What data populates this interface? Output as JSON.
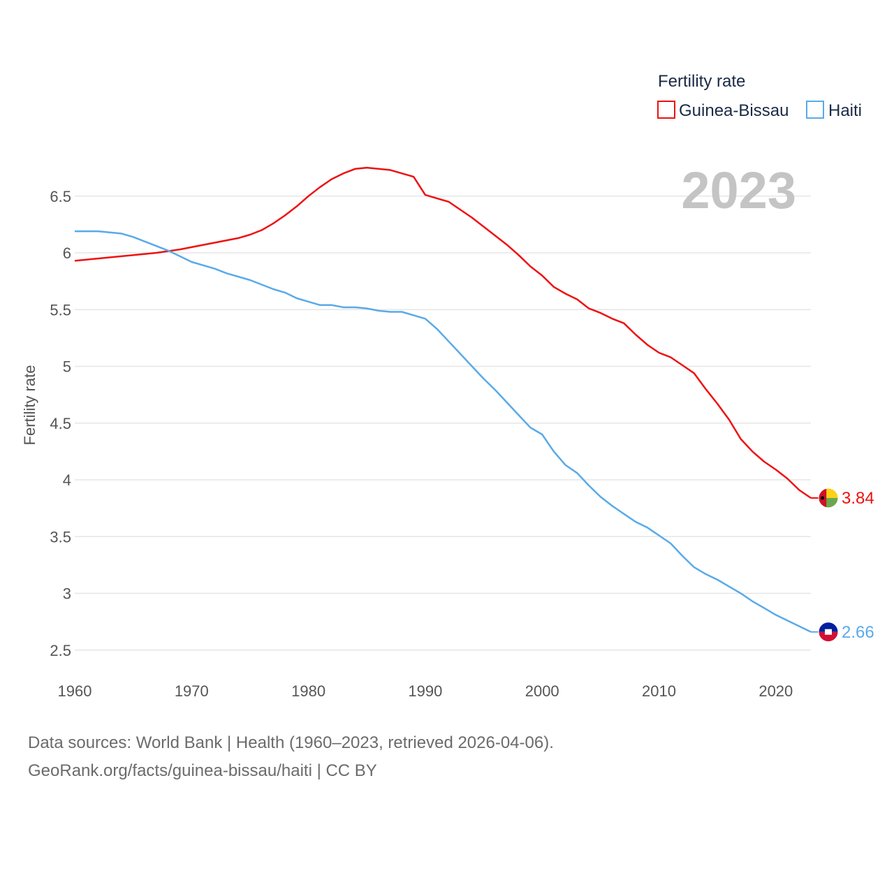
{
  "chart_data": {
    "type": "line",
    "ylabel": "Fertility rate",
    "xlabel": "",
    "xlim": [
      1960,
      2023
    ],
    "ylim": [
      2.4,
      6.8
    ],
    "xticks": [
      1960,
      1970,
      1980,
      1990,
      2000,
      2010,
      2020
    ],
    "yticks": [
      2.5,
      3,
      3.5,
      4,
      4.5,
      5,
      5.5,
      6,
      6.5
    ],
    "ytick_labels": [
      "2.5",
      "3",
      "3.5",
      "4",
      "4.5",
      "5",
      "5.5",
      "6",
      "6.5"
    ],
    "current_year": "2023",
    "legend": {
      "title": "Fertility rate",
      "position": "top-right",
      "entries": [
        "Guinea-Bissau",
        "Haiti"
      ]
    },
    "series": [
      {
        "name": "Guinea-Bissau",
        "color": "#ee1111",
        "end_label": "3.84",
        "flag_colors": [
          "#ce1126",
          "#fcd116",
          "#6aa84f",
          "#000000"
        ],
        "points": [
          [
            1960,
            5.93
          ],
          [
            1962,
            5.95
          ],
          [
            1964,
            5.97
          ],
          [
            1966,
            5.99
          ],
          [
            1967,
            6.0
          ],
          [
            1969,
            6.03
          ],
          [
            1971,
            6.07
          ],
          [
            1973,
            6.11
          ],
          [
            1974,
            6.13
          ],
          [
            1975,
            6.16
          ],
          [
            1976,
            6.2
          ],
          [
            1977,
            6.26
          ],
          [
            1978,
            6.33
          ],
          [
            1979,
            6.41
          ],
          [
            1980,
            6.5
          ],
          [
            1981,
            6.58
          ],
          [
            1982,
            6.65
          ],
          [
            1983,
            6.7
          ],
          [
            1984,
            6.74
          ],
          [
            1985,
            6.75
          ],
          [
            1987,
            6.73
          ],
          [
            1989,
            6.67
          ],
          [
            1990,
            6.51
          ],
          [
            1992,
            6.45
          ],
          [
            1994,
            6.31
          ],
          [
            1996,
            6.15
          ],
          [
            1997,
            6.07
          ],
          [
            1998,
            5.98
          ],
          [
            1999,
            5.88
          ],
          [
            2000,
            5.8
          ],
          [
            2001,
            5.7
          ],
          [
            2002,
            5.64
          ],
          [
            2003,
            5.59
          ],
          [
            2004,
            5.51
          ],
          [
            2005,
            5.47
          ],
          [
            2006,
            5.42
          ],
          [
            2007,
            5.38
          ],
          [
            2008,
            5.28
          ],
          [
            2009,
            5.19
          ],
          [
            2010,
            5.12
          ],
          [
            2011,
            5.08
          ],
          [
            2012,
            5.01
          ],
          [
            2013,
            4.94
          ],
          [
            2014,
            4.8
          ],
          [
            2015,
            4.67
          ],
          [
            2016,
            4.53
          ],
          [
            2017,
            4.36
          ],
          [
            2018,
            4.25
          ],
          [
            2019,
            4.16
          ],
          [
            2020,
            4.09
          ],
          [
            2021,
            4.01
          ],
          [
            2022,
            3.91
          ],
          [
            2023,
            3.84
          ]
        ]
      },
      {
        "name": "Haiti",
        "color": "#5aaae8",
        "end_label": "2.66",
        "flag_colors": [
          "#00209f",
          "#d21034",
          "#ffffff"
        ],
        "points": [
          [
            1960,
            6.19
          ],
          [
            1962,
            6.19
          ],
          [
            1964,
            6.17
          ],
          [
            1965,
            6.14
          ],
          [
            1966,
            6.1
          ],
          [
            1967,
            6.06
          ],
          [
            1968,
            6.02
          ],
          [
            1969,
            5.97
          ],
          [
            1970,
            5.92
          ],
          [
            1972,
            5.86
          ],
          [
            1973,
            5.82
          ],
          [
            1975,
            5.76
          ],
          [
            1976,
            5.72
          ],
          [
            1977,
            5.68
          ],
          [
            1978,
            5.65
          ],
          [
            1979,
            5.6
          ],
          [
            1980,
            5.57
          ],
          [
            1981,
            5.54
          ],
          [
            1982,
            5.54
          ],
          [
            1983,
            5.52
          ],
          [
            1984,
            5.52
          ],
          [
            1985,
            5.51
          ],
          [
            1986,
            5.49
          ],
          [
            1987,
            5.48
          ],
          [
            1988,
            5.48
          ],
          [
            1989,
            5.45
          ],
          [
            1990,
            5.42
          ],
          [
            1991,
            5.33
          ],
          [
            1992,
            5.22
          ],
          [
            1993,
            5.11
          ],
          [
            1994,
            5.0
          ],
          [
            1995,
            4.89
          ],
          [
            1996,
            4.79
          ],
          [
            1997,
            4.68
          ],
          [
            1998,
            4.57
          ],
          [
            1999,
            4.46
          ],
          [
            2000,
            4.4
          ],
          [
            2001,
            4.25
          ],
          [
            2002,
            4.13
          ],
          [
            2003,
            4.06
          ],
          [
            2004,
            3.95
          ],
          [
            2005,
            3.85
          ],
          [
            2006,
            3.77
          ],
          [
            2007,
            3.7
          ],
          [
            2008,
            3.63
          ],
          [
            2009,
            3.58
          ],
          [
            2010,
            3.51
          ],
          [
            2011,
            3.44
          ],
          [
            2012,
            3.33
          ],
          [
            2013,
            3.23
          ],
          [
            2014,
            3.17
          ],
          [
            2015,
            3.12
          ],
          [
            2016,
            3.06
          ],
          [
            2017,
            3.0
          ],
          [
            2018,
            2.93
          ],
          [
            2019,
            2.87
          ],
          [
            2020,
            2.81
          ],
          [
            2021,
            2.76
          ],
          [
            2022,
            2.71
          ],
          [
            2023,
            2.66
          ]
        ]
      }
    ]
  },
  "footer": {
    "line1": "Data sources: World Bank | Health (1960–2023, retrieved 2026-04-06).",
    "line2": "GeoRank.org/facts/guinea-bissau/haiti | CC BY"
  }
}
